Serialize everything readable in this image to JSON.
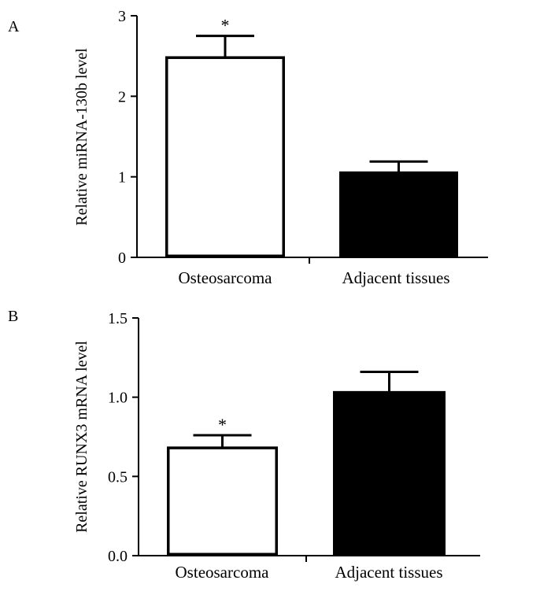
{
  "chart_data": [
    {
      "panel_label": "A",
      "type": "bar",
      "categories": [
        "Osteosarcoma",
        "Adjacent tissues"
      ],
      "values": [
        2.48,
        1.05
      ],
      "errors": [
        0.27,
        0.14
      ],
      "bar_fills": [
        "#ffffff",
        "#000000"
      ],
      "significance": [
        "*",
        ""
      ],
      "ylabel": "Relative miRNA-130b level",
      "ylim": [
        0,
        3
      ],
      "yticks": [
        0,
        1,
        2,
        3
      ],
      "ytick_labels": [
        "0",
        "1",
        "2",
        "3"
      ]
    },
    {
      "panel_label": "B",
      "type": "bar",
      "categories": [
        "Osteosarcoma",
        "Adjacent tissues"
      ],
      "values": [
        0.68,
        1.03
      ],
      "errors": [
        0.08,
        0.13
      ],
      "bar_fills": [
        "#ffffff",
        "#000000"
      ],
      "significance": [
        "*",
        ""
      ],
      "ylabel": "Relative RUNX3 mRNA level",
      "ylim": [
        0,
        1.5
      ],
      "yticks": [
        0,
        0.5,
        1.0,
        1.5
      ],
      "ytick_labels": [
        "0.0",
        "0.5",
        "1.0",
        "1.5"
      ]
    }
  ]
}
